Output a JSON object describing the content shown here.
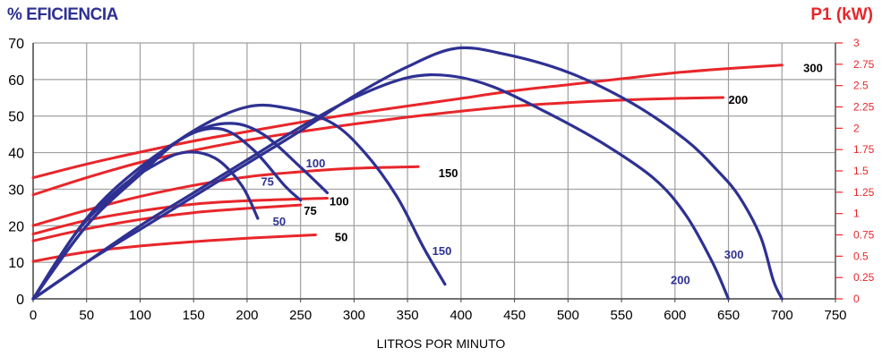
{
  "chart_data": {
    "type": "line",
    "title_left": "% EFICIENCIA",
    "title_right": "P1 (kW)",
    "xlabel": "LITROS POR MINUTO",
    "xlim": [
      0,
      750
    ],
    "ylim_left": [
      0,
      70
    ],
    "ylim_right": [
      0,
      3
    ],
    "x_ticks": [
      "0",
      "50",
      "100",
      "150",
      "200",
      "250",
      "300",
      "350",
      "400",
      "450",
      "500",
      "550",
      "600",
      "650",
      "700",
      "750"
    ],
    "y_left_ticks": [
      "0",
      "10",
      "20",
      "30",
      "40",
      "50",
      "60",
      "70"
    ],
    "y_right_ticks": [
      "0",
      "0.25",
      "0.5",
      "0.75",
      "1",
      "1.25",
      "1.5",
      "1.75",
      "2",
      "2.25",
      "2.5",
      "2.75",
      "3"
    ],
    "grid": true,
    "colors": {
      "efficiency": "#2e3192",
      "power": "#e8262a",
      "title_left": "#2e3192",
      "title_right": "#e8262a"
    },
    "efficiency_series": [
      {
        "name": "50",
        "label_xy": [
          224,
          21
        ],
        "points": [
          [
            0,
            0
          ],
          [
            40,
            18
          ],
          [
            80,
            30
          ],
          [
            110,
            36
          ],
          [
            140,
            40
          ],
          [
            170,
            38.5
          ],
          [
            195,
            31
          ],
          [
            210,
            22
          ]
        ]
      },
      {
        "name": "75",
        "label_xy": [
          213,
          32
        ],
        "points": [
          [
            0,
            0
          ],
          [
            50,
            20
          ],
          [
            100,
            34
          ],
          [
            140,
            44
          ],
          [
            175,
            46.5
          ],
          [
            205,
            41
          ],
          [
            235,
            31
          ],
          [
            250,
            27
          ]
        ]
      },
      {
        "name": "100",
        "label_xy": [
          255,
          37
        ],
        "points": [
          [
            0,
            0
          ],
          [
            50,
            22
          ],
          [
            100,
            36
          ],
          [
            150,
            45.5
          ],
          [
            185,
            48
          ],
          [
            215,
            45
          ],
          [
            250,
            36
          ],
          [
            275,
            29
          ]
        ]
      },
      {
        "name": "150",
        "label_xy": [
          373,
          13
        ],
        "points": [
          [
            0,
            0
          ],
          [
            50,
            20
          ],
          [
            100,
            35
          ],
          [
            150,
            46
          ],
          [
            200,
            52.5
          ],
          [
            240,
            52
          ],
          [
            280,
            48
          ],
          [
            310,
            40
          ],
          [
            340,
            28
          ],
          [
            365,
            14
          ],
          [
            385,
            4
          ]
        ]
      },
      {
        "name": "200",
        "label_xy": [
          596,
          5
        ],
        "points": [
          [
            0,
            0
          ],
          [
            50,
            10
          ],
          [
            100,
            20
          ],
          [
            150,
            29
          ],
          [
            200,
            38
          ],
          [
            250,
            47
          ],
          [
            300,
            55
          ],
          [
            350,
            60.5
          ],
          [
            390,
            61
          ],
          [
            430,
            58
          ],
          [
            480,
            51
          ],
          [
            530,
            43
          ],
          [
            580,
            33
          ],
          [
            610,
            23
          ],
          [
            635,
            10
          ],
          [
            650,
            0
          ]
        ]
      },
      {
        "name": "300",
        "label_xy": [
          646,
          12
        ],
        "points": [
          [
            0,
            0
          ],
          [
            50,
            10
          ],
          [
            100,
            19
          ],
          [
            150,
            28
          ],
          [
            200,
            37
          ],
          [
            250,
            46
          ],
          [
            300,
            55.5
          ],
          [
            350,
            63.5
          ],
          [
            395,
            68.5
          ],
          [
            440,
            67
          ],
          [
            500,
            62
          ],
          [
            560,
            53.5
          ],
          [
            610,
            43.5
          ],
          [
            640,
            35
          ],
          [
            660,
            28
          ],
          [
            680,
            17
          ],
          [
            692,
            5
          ],
          [
            700,
            0
          ]
        ]
      }
    ],
    "power_series": [
      {
        "name": "50",
        "label_xy": [
          282,
          0.72
        ],
        "points": [
          [
            0,
            0.44
          ],
          [
            50,
            0.55
          ],
          [
            100,
            0.62
          ],
          [
            150,
            0.67
          ],
          [
            200,
            0.71
          ],
          [
            264,
            0.75
          ]
        ]
      },
      {
        "name": "75",
        "label_xy": [
          253,
          1.03
        ],
        "points": [
          [
            0,
            0.68
          ],
          [
            50,
            0.82
          ],
          [
            100,
            0.93
          ],
          [
            150,
            1.01
          ],
          [
            200,
            1.06
          ],
          [
            250,
            1.1
          ]
        ]
      },
      {
        "name": "100",
        "label_xy": [
          277,
          1.14
        ],
        "points": [
          [
            0,
            0.76
          ],
          [
            50,
            0.92
          ],
          [
            100,
            1.03
          ],
          [
            150,
            1.11
          ],
          [
            200,
            1.15
          ],
          [
            275,
            1.18
          ]
        ]
      },
      {
        "name": "150",
        "label_xy": [
          379,
          1.47
        ],
        "points": [
          [
            0,
            0.86
          ],
          [
            50,
            1.04
          ],
          [
            100,
            1.2
          ],
          [
            150,
            1.33
          ],
          [
            200,
            1.43
          ],
          [
            250,
            1.49
          ],
          [
            300,
            1.53
          ],
          [
            360,
            1.55
          ]
        ]
      },
      {
        "name": "200",
        "label_xy": [
          650,
          2.33
        ],
        "points": [
          [
            0,
            1.22
          ],
          [
            50,
            1.42
          ],
          [
            100,
            1.6
          ],
          [
            150,
            1.74
          ],
          [
            200,
            1.86
          ],
          [
            250,
            1.96
          ],
          [
            300,
            2.05
          ],
          [
            350,
            2.13
          ],
          [
            400,
            2.2
          ],
          [
            450,
            2.26
          ],
          [
            500,
            2.3
          ],
          [
            550,
            2.33
          ],
          [
            600,
            2.35
          ],
          [
            645,
            2.36
          ]
        ]
      },
      {
        "name": "300",
        "label_xy": [
          720,
          2.7
        ],
        "points": [
          [
            0,
            1.42
          ],
          [
            50,
            1.58
          ],
          [
            100,
            1.72
          ],
          [
            150,
            1.85
          ],
          [
            200,
            1.96
          ],
          [
            250,
            2.07
          ],
          [
            300,
            2.17
          ],
          [
            350,
            2.26
          ],
          [
            400,
            2.35
          ],
          [
            450,
            2.44
          ],
          [
            500,
            2.51
          ],
          [
            550,
            2.58
          ],
          [
            600,
            2.65
          ],
          [
            650,
            2.7
          ],
          [
            700,
            2.74
          ]
        ]
      }
    ]
  }
}
